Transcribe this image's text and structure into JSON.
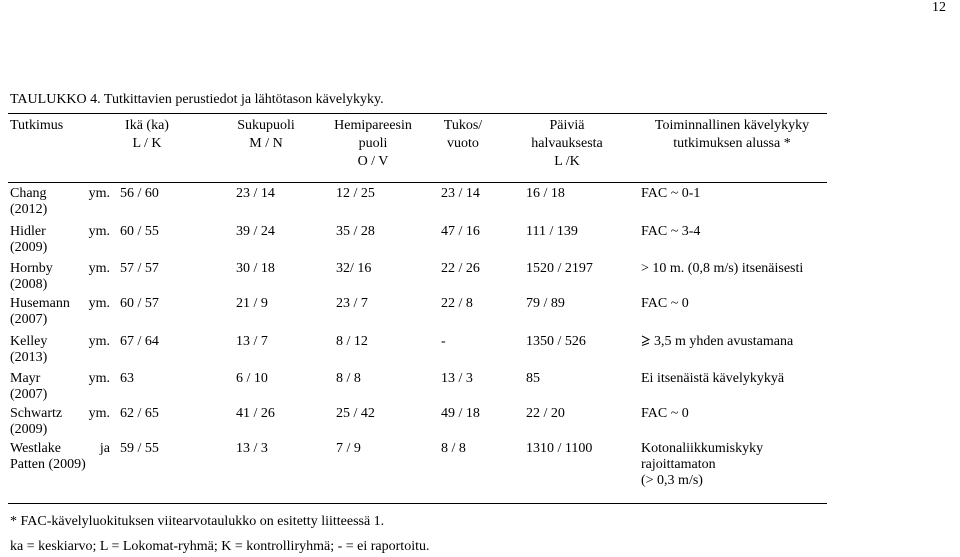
{
  "page_number": "12",
  "caption": "TAULUKKO 4. Tutkittavien perustiedot ja lähtötason kävelykyky.",
  "headers": [
    [
      "Tutkimus"
    ],
    [
      "Ikä (ka)",
      "L  / K"
    ],
    [
      "Sukupuoli",
      "M / N"
    ],
    [
      "Hemipareesin",
      "puoli",
      "O / V"
    ],
    [
      "Tukos/",
      "vuoto"
    ],
    [
      "Päiviä",
      "halvauksesta",
      "L /K"
    ],
    [
      "Toiminnallinen kävelykyky",
      "tutkimuksen alussa *"
    ]
  ],
  "rows": [
    {
      "author": "Chang",
      "suffix": "ym.",
      "year": "(2012)",
      "age": "56 / 60",
      "sex": "23 / 14",
      "side": "12 / 25",
      "type": "23 / 14",
      "days": "16 / 18",
      "walk": [
        "FAC ~ 0-1"
      ]
    },
    {
      "author": "Hidler",
      "suffix": "ym.",
      "year": "(2009)",
      "age": "60 / 55",
      "sex": "39 / 24",
      "side": "35 / 28",
      "type": "47 / 16",
      "days": "111 / 139",
      "walk": [
        "FAC ~ 3-4"
      ]
    },
    {
      "author": "Hornby",
      "suffix": "ym.",
      "year": "(2008)",
      "age": "57 / 57",
      "sex": "30 / 18",
      "side": "32/ 16",
      "type": "22 / 26",
      "days": "1520 / 2197",
      "walk": [
        "> 10 m. (0,8 m/s) itsenäisesti"
      ]
    },
    {
      "author": "Husemann",
      "suffix": "ym.",
      "year": "(2007)",
      "age": "60 / 57",
      "sex": "21 / 9",
      "side": "23 / 7",
      "type": "22 / 8",
      "days": "79 / 89",
      "walk": [
        "FAC ~ 0"
      ]
    },
    {
      "author": "Kelley",
      "suffix": "ym.",
      "year": "(2013)",
      "age": "67 / 64",
      "sex": "13 / 7",
      "side": "8 / 12",
      "type": "-",
      "days": "1350 / 526",
      "walk": [
        "3,5 m yhden avustamana"
      ],
      "geq": true
    },
    {
      "author": "Mayr",
      "suffix": "ym.",
      "year": "(2007)",
      "age": "63",
      "sex": "6 / 10",
      "side": "8 / 8",
      "type": "13 / 3",
      "days": "85",
      "walk": [
        "Ei itsenäistä kävelykykyä"
      ]
    },
    {
      "author": "Schwartz",
      "suffix": "ym.",
      "year": "(2009)",
      "age": "62 / 65",
      "sex": "41 / 26",
      "side": "25 / 42",
      "type": "49 / 18",
      "days": "22 / 20",
      "walk": [
        "FAC ~ 0"
      ]
    },
    {
      "author": "Westlake",
      "suffix": "ja",
      "year": "Patten (2009)",
      "age": "59 / 55",
      "sex": "13 / 3",
      "side": "7 / 9",
      "type": "8 / 8",
      "days": "1310 / 1100",
      "walk": [
        "Kotonaliikkumiskyky",
        "rajoittamaton",
        "(> 0,3 m/s)"
      ]
    }
  ],
  "footnotes": [
    "* FAC-kävelyluokituksen viitearvotaulukko on esitetty liitteessä 1.",
    "ka = keskiarvo; L = Lokomat-ryhmä; K = kontrolliryhmä; - = ei raportoitu."
  ]
}
